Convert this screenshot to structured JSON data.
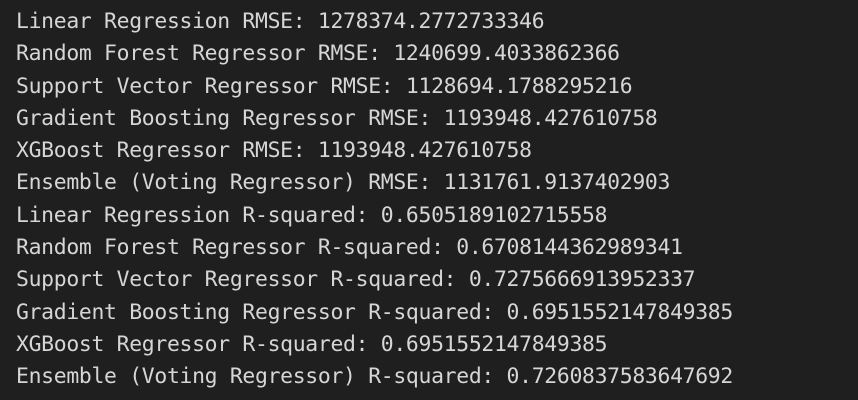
{
  "terminal": {
    "lines": [
      "Linear Regression RMSE: 1278374.2772733346",
      "Random Forest Regressor RMSE: 1240699.4033862366",
      "Support Vector Regressor RMSE: 1128694.1788295216",
      "Gradient Boosting Regressor RMSE: 1193948.427610758",
      "XGBoost Regressor RMSE: 1193948.427610758",
      "Ensemble (Voting Regressor) RMSE: 1131761.9137402903",
      "Linear Regression R-squared: 0.6505189102715558",
      "Random Forest Regressor R-squared: 0.6708144362989341",
      "Support Vector Regressor R-squared: 0.7275666913952337",
      "Gradient Boosting Regressor R-squared: 0.6951552147849385",
      "XGBoost Regressor R-squared: 0.6951552147849385",
      "Ensemble (Voting Regressor) R-squared: 0.7260837583647692"
    ],
    "colors": {
      "background": "#1f1f1f",
      "text": "#d6d6d6"
    }
  }
}
